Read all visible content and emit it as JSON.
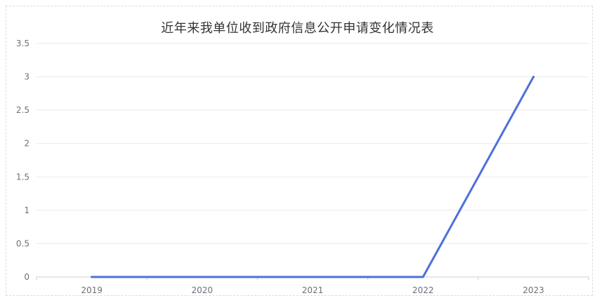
{
  "chart_data": {
    "type": "line",
    "title": "近年来我单位收到政府信息公开申请变化情况表",
    "categories": [
      "2019",
      "2020",
      "2021",
      "2022",
      "2023"
    ],
    "series": [
      {
        "values": [
          0,
          0,
          0,
          0,
          3
        ]
      }
    ],
    "ylim": [
      0,
      3.5
    ],
    "yticks": [
      "0",
      "0.5",
      "1",
      "1.5",
      "2",
      "2.5",
      "3",
      "3.5"
    ],
    "grid": true,
    "colors": {
      "line": "#4e6fdc",
      "grid": "#e9e9e9",
      "axis": "#cfcfcf",
      "title": "#333333"
    }
  }
}
